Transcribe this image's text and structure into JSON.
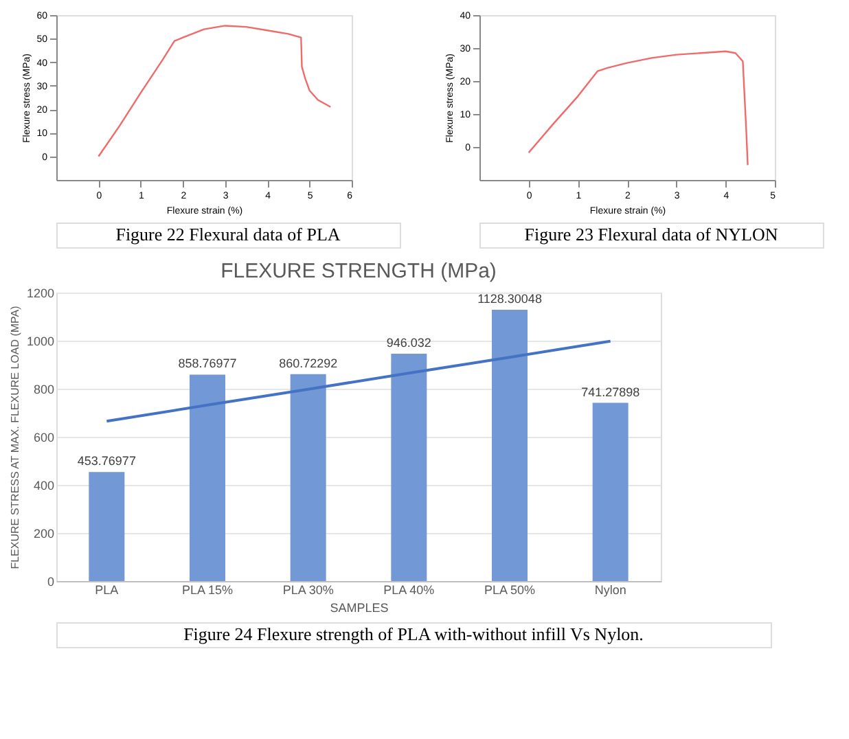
{
  "chart_data": [
    {
      "type": "line",
      "xlabel": "Flexure strain (%)",
      "ylabel": "Flexure stress (MPa)",
      "xlim": [
        -1,
        6
      ],
      "xticks": [
        0,
        1,
        2,
        3,
        4,
        5,
        6
      ],
      "ylim": [
        -10,
        60
      ],
      "yticks": [
        0,
        10,
        20,
        30,
        40,
        50,
        60
      ],
      "grid": false,
      "annotations": [
        "Figure 22 Flexural data of PLA"
      ],
      "series": [
        {
          "color": "#f06a6a",
          "x": [
            0,
            0.5,
            1,
            1.5,
            1.8,
            2,
            2.5,
            3,
            3.5,
            4,
            4.5,
            4.8,
            4.82,
            4.9,
            5,
            5.2,
            5.5
          ],
          "values": [
            0,
            13,
            27,
            40.5,
            49,
            50.5,
            54,
            55.5,
            55,
            53.5,
            52,
            50.5,
            38,
            33,
            28,
            24,
            21
          ]
        }
      ]
    },
    {
      "type": "line",
      "xlabel": "Flexure strain (%)",
      "ylabel": "Flexure stress (MPa)",
      "xlim": [
        -1,
        5
      ],
      "xticks": [
        0,
        1,
        2,
        3,
        4,
        5
      ],
      "ylim": [
        -10,
        40
      ],
      "yticks": [
        0,
        10,
        20,
        30,
        40
      ],
      "grid": false,
      "annotations": [
        "Figure 23 Flexural data of NYLON"
      ],
      "series": [
        {
          "color": "#f06a6a",
          "x": [
            0,
            0.5,
            1,
            1.4,
            1.6,
            2,
            2.5,
            3,
            3.5,
            4,
            4.2,
            4.35,
            4.42,
            4.45
          ],
          "values": [
            -1.7,
            7,
            15.4,
            23,
            24,
            25.5,
            27,
            28,
            28.5,
            29,
            28.5,
            26,
            5,
            -5.5
          ]
        }
      ]
    },
    {
      "type": "bar",
      "title": "FLEXURE STRENGTH (MPa)",
      "xlabel": "SAMPLES",
      "ylabel": "FLEXURE STRESS AT MAX. FLEXURE LOAD (MPA)",
      "categories": [
        "PLA",
        "PLA 15%",
        "PLA 30%",
        "PLA 40%",
        "PLA 50%",
        "Nylon"
      ],
      "ylim": [
        0,
        1200
      ],
      "yticks": [
        0,
        200,
        400,
        600,
        800,
        1000,
        1200
      ],
      "grid": "y",
      "annotations": [
        "Figure 24 Flexure strength of PLA with-without infill Vs Nylon."
      ],
      "series": [
        {
          "type": "bar",
          "color": "#7299d5",
          "values": [
            453.76977,
            858.76977,
            860.72292,
            946.032,
            1128.30048,
            741.27898
          ],
          "value_labels": [
            "453.76977",
            "858.76977",
            "860.72292",
            "946.032",
            "1128.30048",
            "741.27898"
          ]
        },
        {
          "type": "line",
          "color": "#4472c4",
          "values": [
            665,
            732,
            798,
            865,
            931,
            998
          ]
        }
      ]
    }
  ]
}
